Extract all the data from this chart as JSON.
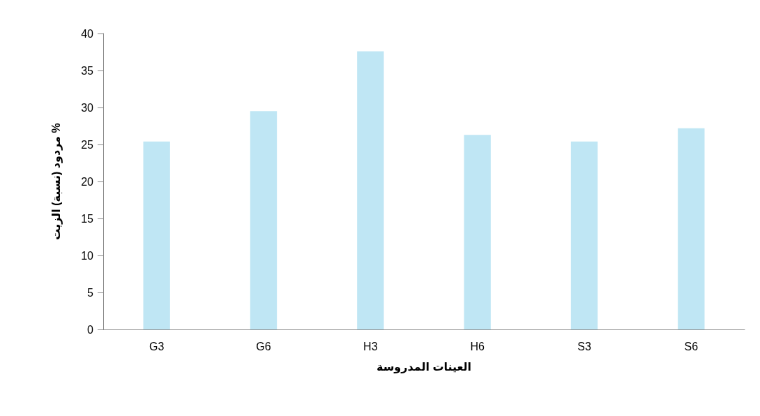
{
  "chart_data": {
    "type": "bar",
    "xlabel": "العينات المدروسة",
    "ylabel": "مردود (نسبة) الزيت %",
    "categories": [
      "G3",
      "G6",
      "H3",
      "H6",
      "S3",
      "S6"
    ],
    "values": [
      25.4,
      29.5,
      37.6,
      26.3,
      25.4,
      27.2
    ],
    "color": "#bfe6f4",
    "ylim": [
      0,
      40
    ],
    "yticks": [
      0,
      5,
      10,
      15,
      20,
      25,
      30,
      35,
      40
    ],
    "grid": false
  }
}
